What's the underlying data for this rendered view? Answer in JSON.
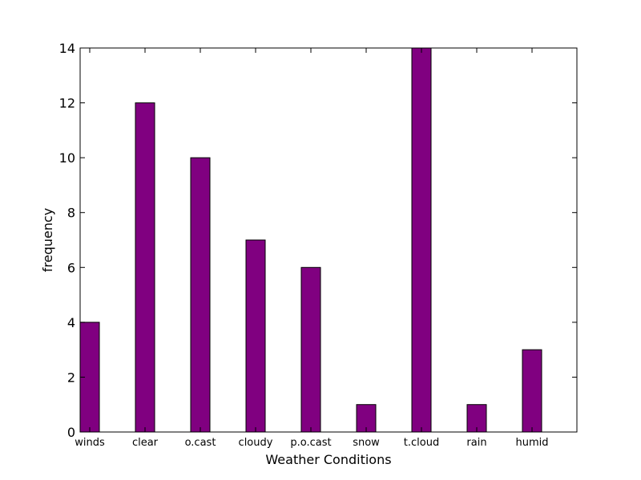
{
  "chart_data": {
    "type": "bar",
    "categories": [
      "winds",
      "clear",
      "o.cast",
      "cloudy",
      "p.o.cast",
      "snow",
      "t.cloud",
      "rain",
      "humid"
    ],
    "values": [
      4,
      12,
      10,
      7,
      6,
      1,
      14,
      1,
      3
    ],
    "xlabel": "Weather Conditions",
    "ylabel": "frequency",
    "ylim": [
      0,
      14
    ],
    "yticks": [
      0,
      2,
      4,
      6,
      8,
      10,
      12,
      14
    ],
    "grid": false,
    "bar_color": "#800080",
    "edge_color": "#000000"
  }
}
